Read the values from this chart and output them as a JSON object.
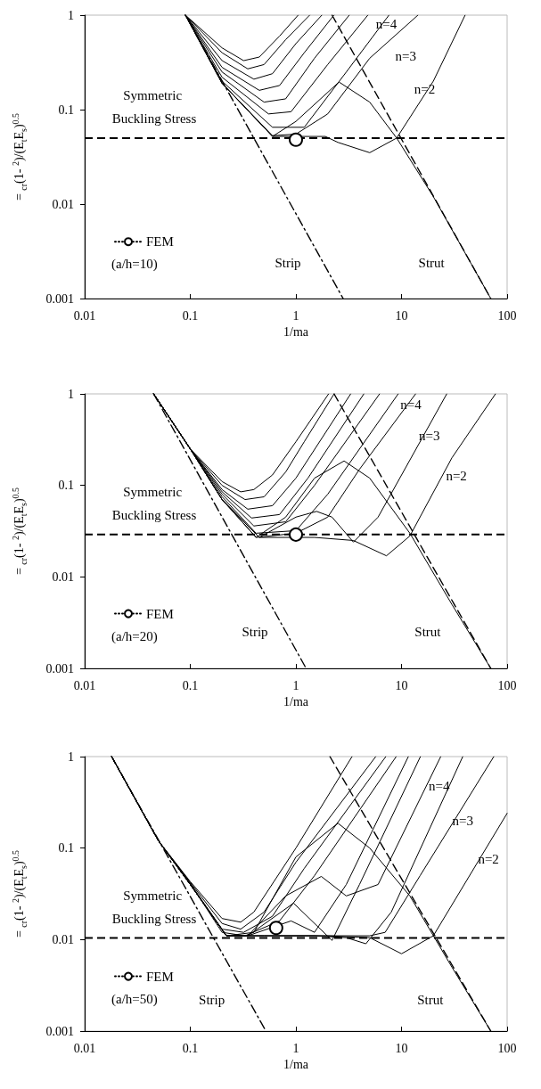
{
  "chart_data": [
    {
      "type": "line",
      "xlabel": "1/ma",
      "ylabel": "=  $_{cr}$(1-  $^{2}$)/(E$_{t}$E$_{s}$)$^{0.5}$",
      "xlim": [
        0.01,
        100
      ],
      "ylim": [
        0.001,
        1
      ],
      "xticks": [
        0.01,
        0.1,
        1,
        10,
        100
      ],
      "yticks": [
        0.001,
        0.01,
        0.1,
        1
      ],
      "log": "xy",
      "grid": false,
      "legend": "bottom left",
      "marker": "none",
      "line_style": "solid",
      "ref_lines": [
        {
          "axis": "y",
          "value": 0.05,
          "label": "Symmetric Buckling Stress",
          "color": "#000000",
          "line_style": "dashed"
        }
      ],
      "annotations": [
        "n=4",
        "n=3",
        "n=2",
        "Strip",
        "Strut",
        "(a/h=10)"
      ],
      "series": [
        {
          "color": "#000000",
          "x": [
            0.09,
            0.2,
            0.32,
            0.45,
            0.7,
            1.05
          ],
          "values": [
            1,
            0.45,
            0.33,
            0.36,
            0.6,
            1
          ]
        },
        {
          "color": "#000000",
          "x": [
            0.09,
            0.2,
            0.35,
            0.5,
            0.8,
            1.35
          ],
          "values": [
            1,
            0.4,
            0.27,
            0.3,
            0.55,
            1
          ]
        },
        {
          "color": "#000000",
          "x": [
            0.09,
            0.2,
            0.4,
            0.6,
            1,
            1.76
          ],
          "values": [
            1,
            0.33,
            0.21,
            0.24,
            0.5,
            1
          ]
        },
        {
          "color": "#000000",
          "x": [
            0.09,
            0.2,
            0.45,
            0.7,
            1.2,
            2.29
          ],
          "values": [
            1,
            0.28,
            0.16,
            0.18,
            0.4,
            1
          ]
        },
        {
          "color": "#000000",
          "x": [
            0.09,
            0.2,
            0.5,
            0.8,
            1.5,
            3.2
          ],
          "values": [
            1,
            0.25,
            0.12,
            0.13,
            0.35,
            1
          ]
        },
        {
          "color": "#000000",
          "x": [
            0.09,
            0.2,
            0.55,
            0.9,
            2,
            4.8
          ],
          "values": [
            1,
            0.22,
            0.09,
            0.095,
            0.3,
            1
          ]
        },
        {
          "color": "#000000",
          "x": [
            0.09,
            0.2,
            0.6,
            1.2,
            3,
            7.6
          ],
          "values": [
            1,
            0.2,
            0.065,
            0.065,
            0.25,
            1
          ]
        },
        {
          "color": "#000000",
          "x": [
            0.09,
            0.2,
            0.6,
            1,
            2,
            5,
            14.3
          ],
          "values": [
            1,
            0.19,
            0.053,
            0.055,
            0.09,
            0.35,
            1
          ]
        },
        {
          "color": "#000000",
          "x": [
            0.09,
            0.2,
            0.6,
            1,
            2.56,
            5,
            9,
            20,
            70
          ],
          "values": [
            1,
            0.19,
            0.052,
            0.075,
            0.196,
            0.12,
            0.05,
            0.012,
            0.001
          ]
        },
        {
          "color": "#000000",
          "x": [
            0.09,
            0.2,
            0.6,
            1.9,
            2.5,
            5,
            9,
            20,
            40
          ],
          "values": [
            1,
            0.19,
            0.052,
            0.052,
            0.045,
            0.035,
            0.05,
            0.2,
            1
          ]
        },
        {
          "color": "#000000",
          "line_style": "dashdot",
          "x": [
            0.09,
            2.8
          ],
          "values": [
            1,
            0.001
          ]
        },
        {
          "color": "#000000",
          "line_style": "dashed",
          "x": [
            2.2,
            70
          ],
          "values": [
            1,
            0.001
          ]
        },
        {
          "name": "FEM",
          "color": "#000000",
          "marker": "circle",
          "line_style": "dotted",
          "x": [
            1
          ],
          "values": [
            0.048
          ]
        }
      ]
    },
    {
      "type": "line",
      "xlabel": "1/ma",
      "ylabel": "=  $_{cr}$(1-  $^{2}$)/(E$_{t}$E$_{s}$)$^{0.5}$",
      "xlim": [
        0.01,
        100
      ],
      "ylim": [
        0.001,
        1
      ],
      "xticks": [
        0.01,
        0.1,
        1,
        10,
        100
      ],
      "yticks": [
        0.001,
        0.01,
        0.1,
        1
      ],
      "log": "xy",
      "grid": false,
      "legend": "bottom left",
      "marker": "none",
      "line_style": "solid",
      "ref_lines": [
        {
          "axis": "y",
          "value": 0.029,
          "label": "Symmetric Buckling Stress",
          "color": "#000000",
          "line_style": "dashed"
        }
      ],
      "annotations": [
        "n=4",
        "n=3",
        "n=2",
        "Strip",
        "Strut",
        "(a/h=20)"
      ],
      "series": [
        {
          "color": "#000000",
          "x": [
            0.045,
            0.1,
            0.2,
            0.3,
            0.4,
            0.6,
            1,
            2.04
          ],
          "values": [
            1,
            0.25,
            0.11,
            0.085,
            0.09,
            0.13,
            0.3,
            1
          ]
        },
        {
          "color": "#000000",
          "x": [
            0.045,
            0.1,
            0.2,
            0.33,
            0.5,
            0.8,
            1.2,
            2.3
          ],
          "values": [
            1,
            0.25,
            0.1,
            0.07,
            0.075,
            0.14,
            0.3,
            1
          ]
        },
        {
          "color": "#000000",
          "x": [
            0.045,
            0.1,
            0.2,
            0.35,
            0.6,
            1,
            3.3
          ],
          "values": [
            1,
            0.25,
            0.09,
            0.055,
            0.06,
            0.12,
            1
          ]
        },
        {
          "color": "#000000",
          "x": [
            0.045,
            0.1,
            0.2,
            0.38,
            0.7,
            1.3,
            4.4
          ],
          "values": [
            1,
            0.25,
            0.085,
            0.044,
            0.048,
            0.12,
            1
          ]
        },
        {
          "color": "#000000",
          "x": [
            0.045,
            0.1,
            0.2,
            0.4,
            0.8,
            1.5,
            6.2
          ],
          "values": [
            1,
            0.25,
            0.08,
            0.036,
            0.04,
            0.1,
            1
          ]
        },
        {
          "color": "#000000",
          "x": [
            0.045,
            0.1,
            0.2,
            0.42,
            1,
            2,
            9.3
          ],
          "values": [
            1,
            0.25,
            0.075,
            0.03,
            0.032,
            0.08,
            1
          ]
        },
        {
          "color": "#000000",
          "x": [
            0.045,
            0.1,
            0.2,
            0.42,
            1,
            2,
            4,
            13.6
          ],
          "values": [
            1,
            0.25,
            0.07,
            0.027,
            0.03,
            0.045,
            0.15,
            1
          ]
        },
        {
          "color": "#000000",
          "x": [
            0.045,
            0.1,
            0.2,
            0.42,
            0.8,
            1.5,
            2.86,
            5,
            12,
            30,
            70
          ],
          "values": [
            1,
            0.25,
            0.07,
            0.027,
            0.045,
            0.12,
            0.185,
            0.12,
            0.03,
            0.005,
            0.001
          ]
        },
        {
          "color": "#000000",
          "x": [
            0.045,
            0.1,
            0.2,
            0.45,
            1,
            1.57,
            2.2,
            3.5,
            6,
            26.8
          ],
          "values": [
            1,
            0.25,
            0.07,
            0.027,
            0.045,
            0.052,
            0.045,
            0.024,
            0.045,
            1
          ]
        },
        {
          "color": "#000000",
          "x": [
            0.045,
            0.1,
            0.2,
            0.45,
            1.5,
            3.5,
            7.2,
            12,
            30,
            77.6
          ],
          "values": [
            1,
            0.25,
            0.07,
            0.027,
            0.027,
            0.025,
            0.017,
            0.028,
            0.2,
            1
          ]
        },
        {
          "color": "#000000",
          "line_style": "dashdot",
          "x": [
            0.045,
            1.25
          ],
          "values": [
            1,
            0.001
          ]
        },
        {
          "color": "#000000",
          "line_style": "dashed",
          "x": [
            2.3,
            70
          ],
          "values": [
            1,
            0.001
          ]
        },
        {
          "name": "FEM",
          "color": "#000000",
          "marker": "circle",
          "line_style": "dotted",
          "x": [
            1
          ],
          "values": [
            0.029
          ]
        }
      ]
    },
    {
      "type": "line",
      "xlabel": "1/ma",
      "ylabel": "=  $_{cr}$(1-  $^{2}$)/(E$_{t}$E$_{s}$)$^{0.5}$",
      "xlim": [
        0.01,
        100
      ],
      "ylim": [
        0.001,
        1
      ],
      "xticks": [
        0.01,
        0.1,
        1,
        10,
        100
      ],
      "yticks": [
        0.001,
        0.01,
        0.1,
        1
      ],
      "log": "xy",
      "grid": false,
      "legend": "bottom left",
      "marker": "none",
      "line_style": "solid",
      "ref_lines": [
        {
          "axis": "y",
          "value": 0.0104,
          "label": "Symmetric Buckling Stress",
          "color": "#000000",
          "line_style": "dashed"
        }
      ],
      "annotations": [
        "n=4",
        "n=3",
        "n=2",
        "Strip",
        "Strut",
        "(a/h=50)"
      ],
      "series": [
        {
          "color": "#000000",
          "x": [
            0.018,
            0.05,
            0.1,
            0.2,
            0.3,
            0.4,
            1,
            3.4
          ],
          "values": [
            1,
            0.12,
            0.043,
            0.017,
            0.0155,
            0.02,
            0.1,
            1
          ]
        },
        {
          "color": "#000000",
          "x": [
            0.018,
            0.05,
            0.1,
            0.2,
            0.3,
            0.5,
            1,
            5.7
          ],
          "values": [
            1,
            0.12,
            0.042,
            0.015,
            0.013,
            0.02,
            0.07,
            1
          ]
        },
        {
          "color": "#000000",
          "x": [
            0.018,
            0.05,
            0.1,
            0.2,
            0.32,
            0.6,
            1.2,
            7.1
          ],
          "values": [
            1,
            0.12,
            0.041,
            0.013,
            0.012,
            0.018,
            0.06,
            1
          ]
        },
        {
          "color": "#000000",
          "x": [
            0.018,
            0.05,
            0.1,
            0.2,
            0.33,
            0.7,
            1.5,
            8.9
          ],
          "values": [
            1,
            0.12,
            0.041,
            0.012,
            0.011,
            0.016,
            0.05,
            1
          ]
        },
        {
          "color": "#000000",
          "x": [
            0.018,
            0.05,
            0.1,
            0.22,
            0.35,
            0.9,
            1.5,
            3,
            11.6
          ],
          "values": [
            1,
            0.12,
            0.04,
            0.011,
            0.011,
            0.016,
            0.012,
            0.04,
            1
          ]
        },
        {
          "color": "#000000",
          "x": [
            0.018,
            0.05,
            0.1,
            0.22,
            0.35,
            0.95,
            2.2,
            4,
            15.1
          ],
          "values": [
            1,
            0.12,
            0.04,
            0.011,
            0.011,
            0.025,
            0.0098,
            0.04,
            1
          ]
        },
        {
          "color": "#000000",
          "x": [
            0.018,
            0.05,
            0.1,
            0.22,
            0.35,
            0.8,
            1.74,
            3,
            6,
            23.5
          ],
          "values": [
            1,
            0.12,
            0.04,
            0.011,
            0.011,
            0.03,
            0.049,
            0.03,
            0.04,
            1
          ]
        },
        {
          "color": "#000000",
          "x": [
            0.018,
            0.05,
            0.1,
            0.22,
            0.4,
            1,
            2.5,
            5,
            12,
            30,
            70
          ],
          "values": [
            1,
            0.12,
            0.04,
            0.011,
            0.012,
            0.08,
            0.187,
            0.1,
            0.03,
            0.005,
            0.001
          ]
        },
        {
          "color": "#000000",
          "x": [
            0.018,
            0.05,
            0.1,
            0.22,
            0.5,
            1.5,
            3,
            4.6,
            8,
            38
          ],
          "values": [
            1,
            0.12,
            0.04,
            0.011,
            0.011,
            0.011,
            0.0105,
            0.009,
            0.02,
            1
          ]
        },
        {
          "color": "#000000",
          "x": [
            0.018,
            0.05,
            0.1,
            0.22,
            0.5,
            2,
            5,
            7,
            15,
            74.8
          ],
          "values": [
            1,
            0.12,
            0.04,
            0.011,
            0.011,
            0.011,
            0.011,
            0.012,
            0.05,
            1
          ]
        },
        {
          "color": "#000000",
          "x": [
            0.018,
            0.05,
            0.1,
            0.22,
            0.5,
            2,
            5,
            10,
            20,
            100
          ],
          "values": [
            1,
            0.12,
            0.04,
            0.011,
            0.011,
            0.011,
            0.0105,
            0.007,
            0.011,
            0.24
          ]
        },
        {
          "color": "#000000",
          "line_style": "dashdot",
          "x": [
            0.018,
            0.52
          ],
          "values": [
            1,
            0.001
          ]
        },
        {
          "color": "#000000",
          "line_style": "dashed",
          "x": [
            2.1,
            70
          ],
          "values": [
            1,
            0.001
          ]
        },
        {
          "name": "FEM",
          "color": "#000000",
          "marker": "circle",
          "line_style": "dotted",
          "x": [
            0.65
          ],
          "values": [
            0.0134
          ]
        }
      ]
    }
  ]
}
